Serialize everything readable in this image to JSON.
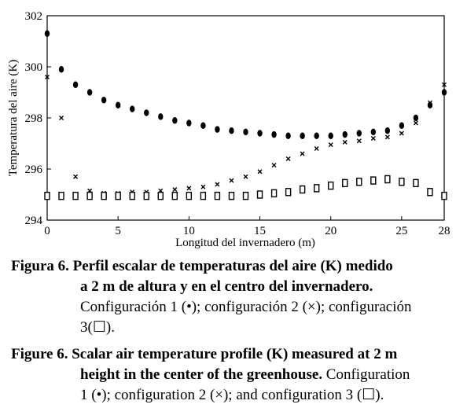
{
  "chart_data": {
    "type": "scatter",
    "xlabel": "Longitud del invernadero (m)",
    "ylabel": "Temperatura del aire (K)",
    "xlim": [
      0,
      28
    ],
    "ylim": [
      294,
      302
    ],
    "xticks": [
      0,
      5,
      10,
      15,
      20,
      25,
      28
    ],
    "yticks": [
      294,
      296,
      298,
      300,
      302
    ],
    "grid": false,
    "series": [
      {
        "marker": "filled-circle",
        "x": [
          0,
          1,
          2,
          3,
          4,
          5,
          6,
          7,
          8,
          9,
          10,
          11,
          12,
          13,
          14,
          15,
          16,
          17,
          18,
          19,
          20,
          21,
          22,
          23,
          24,
          25,
          26,
          27,
          28
        ],
        "y": [
          301.3,
          299.9,
          299.3,
          299.0,
          298.7,
          298.5,
          298.35,
          298.2,
          298.05,
          297.9,
          297.8,
          297.7,
          297.55,
          297.5,
          297.45,
          297.4,
          297.35,
          297.3,
          297.3,
          297.3,
          297.3,
          297.35,
          297.4,
          297.45,
          297.5,
          297.7,
          298.0,
          298.5,
          299.0
        ]
      },
      {
        "marker": "cross",
        "x": [
          0,
          1,
          2,
          3,
          4,
          5,
          6,
          7,
          8,
          9,
          10,
          11,
          12,
          13,
          14,
          15,
          16,
          17,
          18,
          19,
          20,
          21,
          22,
          23,
          24,
          25,
          26,
          27,
          28
        ],
        "y": [
          299.6,
          298.0,
          295.7,
          295.15,
          295.05,
          295.05,
          295.1,
          295.1,
          295.15,
          295.2,
          295.25,
          295.3,
          295.4,
          295.55,
          295.7,
          295.9,
          296.15,
          296.4,
          296.6,
          296.8,
          296.95,
          297.05,
          297.1,
          297.2,
          297.25,
          297.4,
          297.8,
          298.6,
          299.3
        ]
      },
      {
        "marker": "open-square",
        "x": [
          0,
          1,
          2,
          3,
          4,
          5,
          6,
          7,
          8,
          9,
          10,
          11,
          12,
          13,
          14,
          15,
          16,
          17,
          18,
          19,
          20,
          21,
          22,
          23,
          24,
          25,
          26,
          27,
          28
        ],
        "y": [
          294.95,
          294.95,
          294.95,
          294.95,
          294.95,
          294.95,
          294.95,
          294.95,
          294.95,
          294.95,
          294.95,
          294.95,
          294.95,
          294.95,
          294.95,
          295.0,
          295.05,
          295.1,
          295.2,
          295.25,
          295.35,
          295.45,
          295.5,
          295.55,
          295.6,
          295.5,
          295.45,
          295.1,
          294.95
        ]
      }
    ]
  },
  "caption": {
    "es_line1": "Figura 6. Perfil escalar de temperaturas del aire (K) medido",
    "es_line2": "a 2 m de altura y en el centro del invernadero.",
    "es_line3": "Configuración 1 (•); configuración 2 (×); configuración",
    "es_line4": "3(☐).",
    "en_line1": "Figure 6. Scalar air temperature profile (K) measured at 2 m",
    "en_line2_bold": "height in the center of the greenhouse.",
    "en_line2_rest": " Configuration",
    "en_line3": "1 (•); configuration 2 (×); and configuration 3 (☐)."
  }
}
